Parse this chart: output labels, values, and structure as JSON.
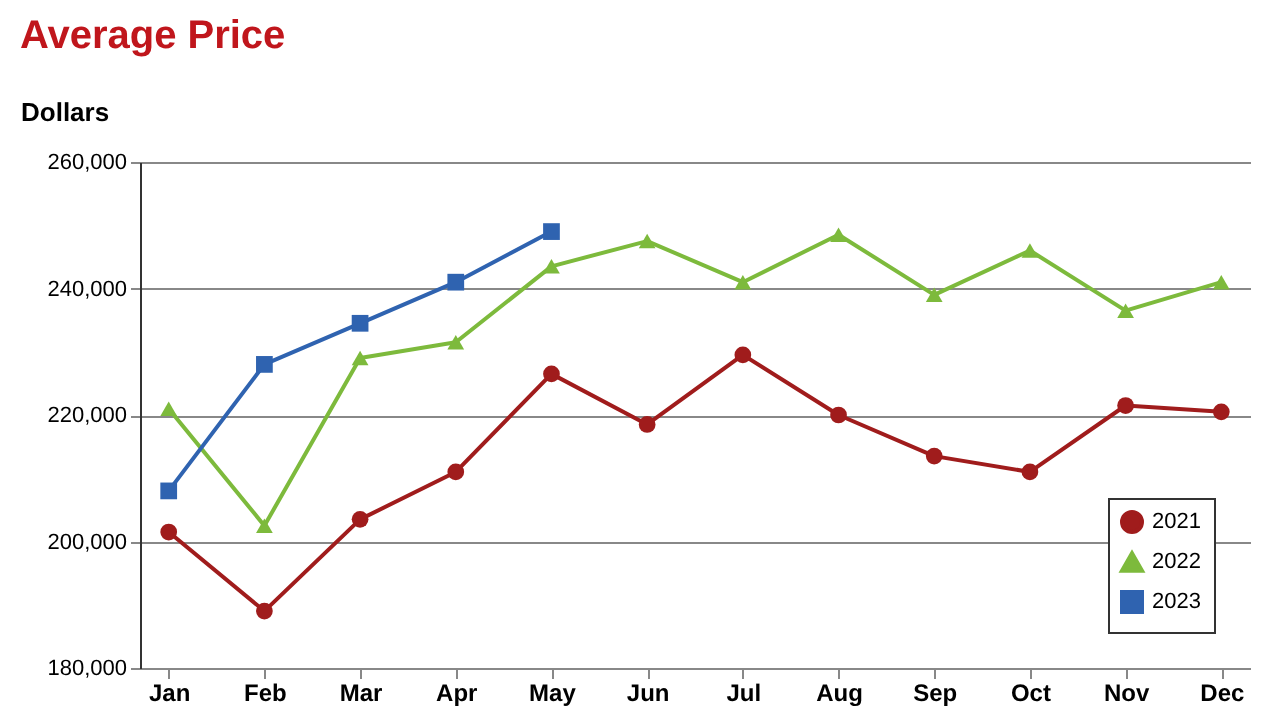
{
  "chart_data": {
    "type": "line",
    "title": "Average Price",
    "ylabel": "Dollars",
    "categories": [
      "Jan",
      "Feb",
      "Mar",
      "Apr",
      "May",
      "Jun",
      "Jul",
      "Aug",
      "Sep",
      "Oct",
      "Nov",
      "Dec"
    ],
    "series": [
      {
        "name": "2021",
        "color": "#a01c1c",
        "marker": "circle",
        "values": [
          201500,
          189000,
          203500,
          211000,
          226500,
          218500,
          229500,
          220000,
          213500,
          211000,
          221500,
          220500
        ]
      },
      {
        "name": "2022",
        "color": "#7dba3c",
        "marker": "triangle",
        "values": [
          221000,
          202500,
          229000,
          231500,
          243500,
          247500,
          241000,
          248500,
          239000,
          246000,
          236500,
          241000
        ]
      },
      {
        "name": "2023",
        "color": "#2f63b0",
        "marker": "square",
        "values": [
          208000,
          228000,
          234500,
          241000,
          249000,
          null,
          null,
          null,
          null,
          null,
          null,
          null
        ]
      }
    ],
    "ylim": [
      180000,
      260000
    ],
    "yticks": [
      {
        "value": 180000,
        "label": "180,000"
      },
      {
        "value": 200000,
        "label": "200,000"
      },
      {
        "value": 220000,
        "label": "220,000"
      },
      {
        "value": 240000,
        "label": "240,000"
      },
      {
        "value": 260000,
        "label": "260,000"
      }
    ],
    "grid": "y",
    "legend": "bottom right",
    "line_style": "solid"
  }
}
